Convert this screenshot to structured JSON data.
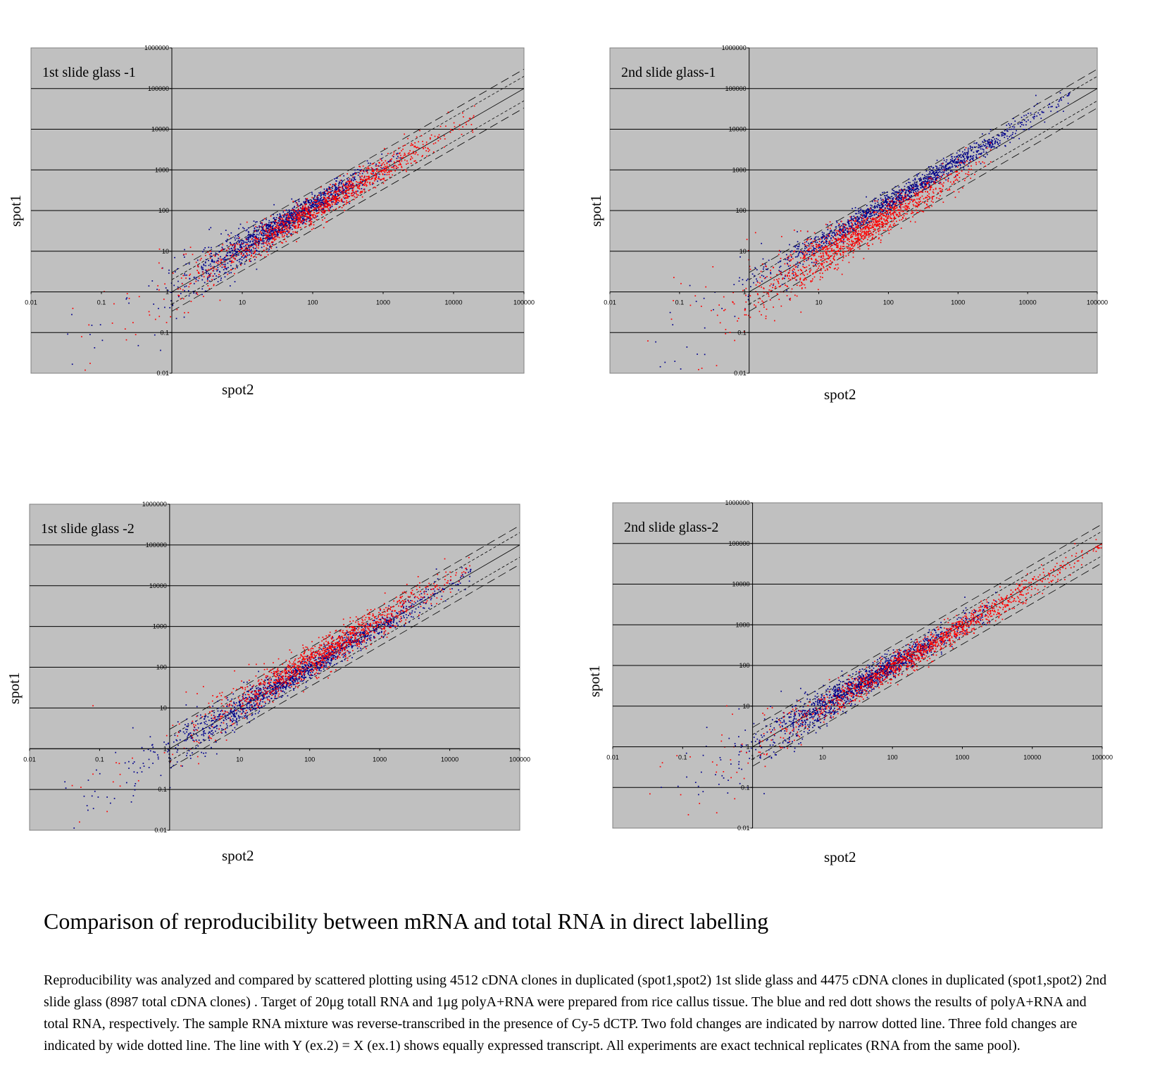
{
  "figure": {
    "title": "Comparison of  reproducibility between mRNA and total RNA in direct labelling",
    "caption": "Reproducibility was analyzed and compared by scattered plotting using 4512 cDNA clones in duplicated (spot1,spot2) 1st slide glass and 4475 cDNA clones in duplicated (spot1,spot2)  2nd slide glass (8987 total cDNA clones) . Target of 20μg totall RNA and 1μg polyA+RNA were prepared from rice callus tissue. The blue and red dott shows the results of polyA+RNA and total RNA, respectively. The sample RNA mixture was reverse-transcribed in the presence of Cy-5 dCTP. Two fold changes are indicated by narrow dotted line. Three fold changes are indicated by wide dotted line. The line with Y (ex.2) = X (ex.1) shows equally expressed transcript. All experiments are exact technical replicates (RNA from the same pool)."
  },
  "colors": {
    "plot_bg": "#c0c0c0",
    "polyA": "#00008b",
    "total": "#ff0000"
  },
  "chart_data": [
    {
      "type": "scatter",
      "title": "1st slide glass -1",
      "xlabel": "spot2",
      "ylabel": "spot1",
      "xscale": "log",
      "yscale": "log",
      "xlim": [
        0.01,
        100000
      ],
      "ylim": [
        0.01,
        1000000
      ],
      "x_ticks": [
        "0.01",
        "0.1",
        "1",
        "10",
        "100",
        "1000",
        "10000",
        "100000"
      ],
      "y_ticks": [
        "0.01",
        "0.1",
        "1",
        "10",
        "100",
        "1000",
        "10000",
        "100000",
        "1000000"
      ],
      "series": [
        {
          "name": "polyA+RNA",
          "color": "blue",
          "cloud": {
            "x_range": [
              3,
              2000
            ],
            "center_shift": 0.1,
            "spread": 0.15,
            "n": 1300
          }
        },
        {
          "name": "total RNA",
          "color": "red",
          "cloud": {
            "x_range": [
              3,
              20000
            ],
            "center_shift": 0.0,
            "spread": 0.17,
            "n": 1100
          }
        }
      ],
      "reference_lines": [
        {
          "name": "Y = X",
          "ratio": 1,
          "style": "solid"
        },
        {
          "name": "two fold",
          "ratio": 2,
          "style": "narrow-dotted"
        },
        {
          "name": "three fold",
          "ratio": 3,
          "style": "wide-dotted"
        }
      ]
    },
    {
      "type": "scatter",
      "title": "2nd slide glass-1",
      "xlabel": "spot2",
      "ylabel": "spot1",
      "xscale": "log",
      "yscale": "log",
      "xlim": [
        0.01,
        100000
      ],
      "ylim": [
        0.01,
        1000000
      ],
      "x_ticks": [
        "0.01",
        "0.1",
        "1",
        "10",
        "100",
        "1000",
        "10000",
        "100000"
      ],
      "y_ticks": [
        "0.01",
        "0.1",
        "1",
        "10",
        "100",
        "1000",
        "10000",
        "100000",
        "1000000"
      ],
      "series": [
        {
          "name": "polyA+RNA",
          "color": "blue",
          "cloud": {
            "x_range": [
              3,
              40000
            ],
            "center_shift": 0.2,
            "spread": 0.12,
            "n": 1300
          }
        },
        {
          "name": "total RNA",
          "color": "red",
          "cloud": {
            "x_range": [
              2,
              3000
            ],
            "center_shift": -0.15,
            "spread": 0.2,
            "n": 1200
          }
        }
      ],
      "reference_lines": [
        {
          "name": "Y = X",
          "ratio": 1,
          "style": "solid"
        },
        {
          "name": "two fold",
          "ratio": 2,
          "style": "narrow-dotted"
        },
        {
          "name": "three fold",
          "ratio": 3,
          "style": "wide-dotted"
        }
      ]
    },
    {
      "type": "scatter",
      "title": "1st slide glass -2",
      "xlabel": "spot2",
      "ylabel": "spot1",
      "xscale": "log",
      "yscale": "log",
      "xlim": [
        0.01,
        100000
      ],
      "ylim": [
        0.01,
        1000000
      ],
      "x_ticks": [
        "0.01",
        "0.1",
        "1",
        "10",
        "100",
        "1000",
        "10000",
        "100000"
      ],
      "y_ticks": [
        "0.01",
        "0.1",
        "1",
        "10",
        "100",
        "1000",
        "10000",
        "100000",
        "1000000"
      ],
      "series": [
        {
          "name": "polyA+RNA",
          "color": "blue",
          "cloud": {
            "x_range": [
              1,
              20000
            ],
            "center_shift": 0.0,
            "spread": 0.14,
            "n": 1400
          }
        },
        {
          "name": "total RNA",
          "color": "red",
          "cloud": {
            "x_range": [
              5,
              20000
            ],
            "center_shift": 0.15,
            "spread": 0.2,
            "n": 1100
          }
        }
      ],
      "reference_lines": [
        {
          "name": "Y = X",
          "ratio": 1,
          "style": "solid"
        },
        {
          "name": "two fold",
          "ratio": 2,
          "style": "narrow-dotted"
        },
        {
          "name": "three fold",
          "ratio": 3,
          "style": "wide-dotted"
        }
      ]
    },
    {
      "type": "scatter",
      "title": "2nd slide glass-2",
      "xlabel": "spot2",
      "ylabel": "spot1",
      "xscale": "log",
      "yscale": "log",
      "xlim": [
        0.01,
        100000
      ],
      "ylim": [
        0.01,
        1000000
      ],
      "x_ticks": [
        "0.01",
        "0.1",
        "1",
        "10",
        "100",
        "1000",
        "10000",
        "100000"
      ],
      "y_ticks": [
        "0.01",
        "0.1",
        "1",
        "10",
        "100",
        "1000",
        "10000",
        "100000",
        "1000000"
      ],
      "series": [
        {
          "name": "polyA+RNA",
          "color": "blue",
          "cloud": {
            "x_range": [
              2,
              3000
            ],
            "center_shift": 0.0,
            "spread": 0.15,
            "n": 1400
          }
        },
        {
          "name": "total RNA",
          "color": "red",
          "cloud": {
            "x_range": [
              3,
              100000
            ],
            "center_shift": -0.05,
            "spread": 0.15,
            "n": 1200
          }
        }
      ],
      "reference_lines": [
        {
          "name": "Y = X",
          "ratio": 1,
          "style": "solid"
        },
        {
          "name": "two fold",
          "ratio": 2,
          "style": "narrow-dotted"
        },
        {
          "name": "three fold",
          "ratio": 3,
          "style": "wide-dotted"
        }
      ]
    }
  ]
}
